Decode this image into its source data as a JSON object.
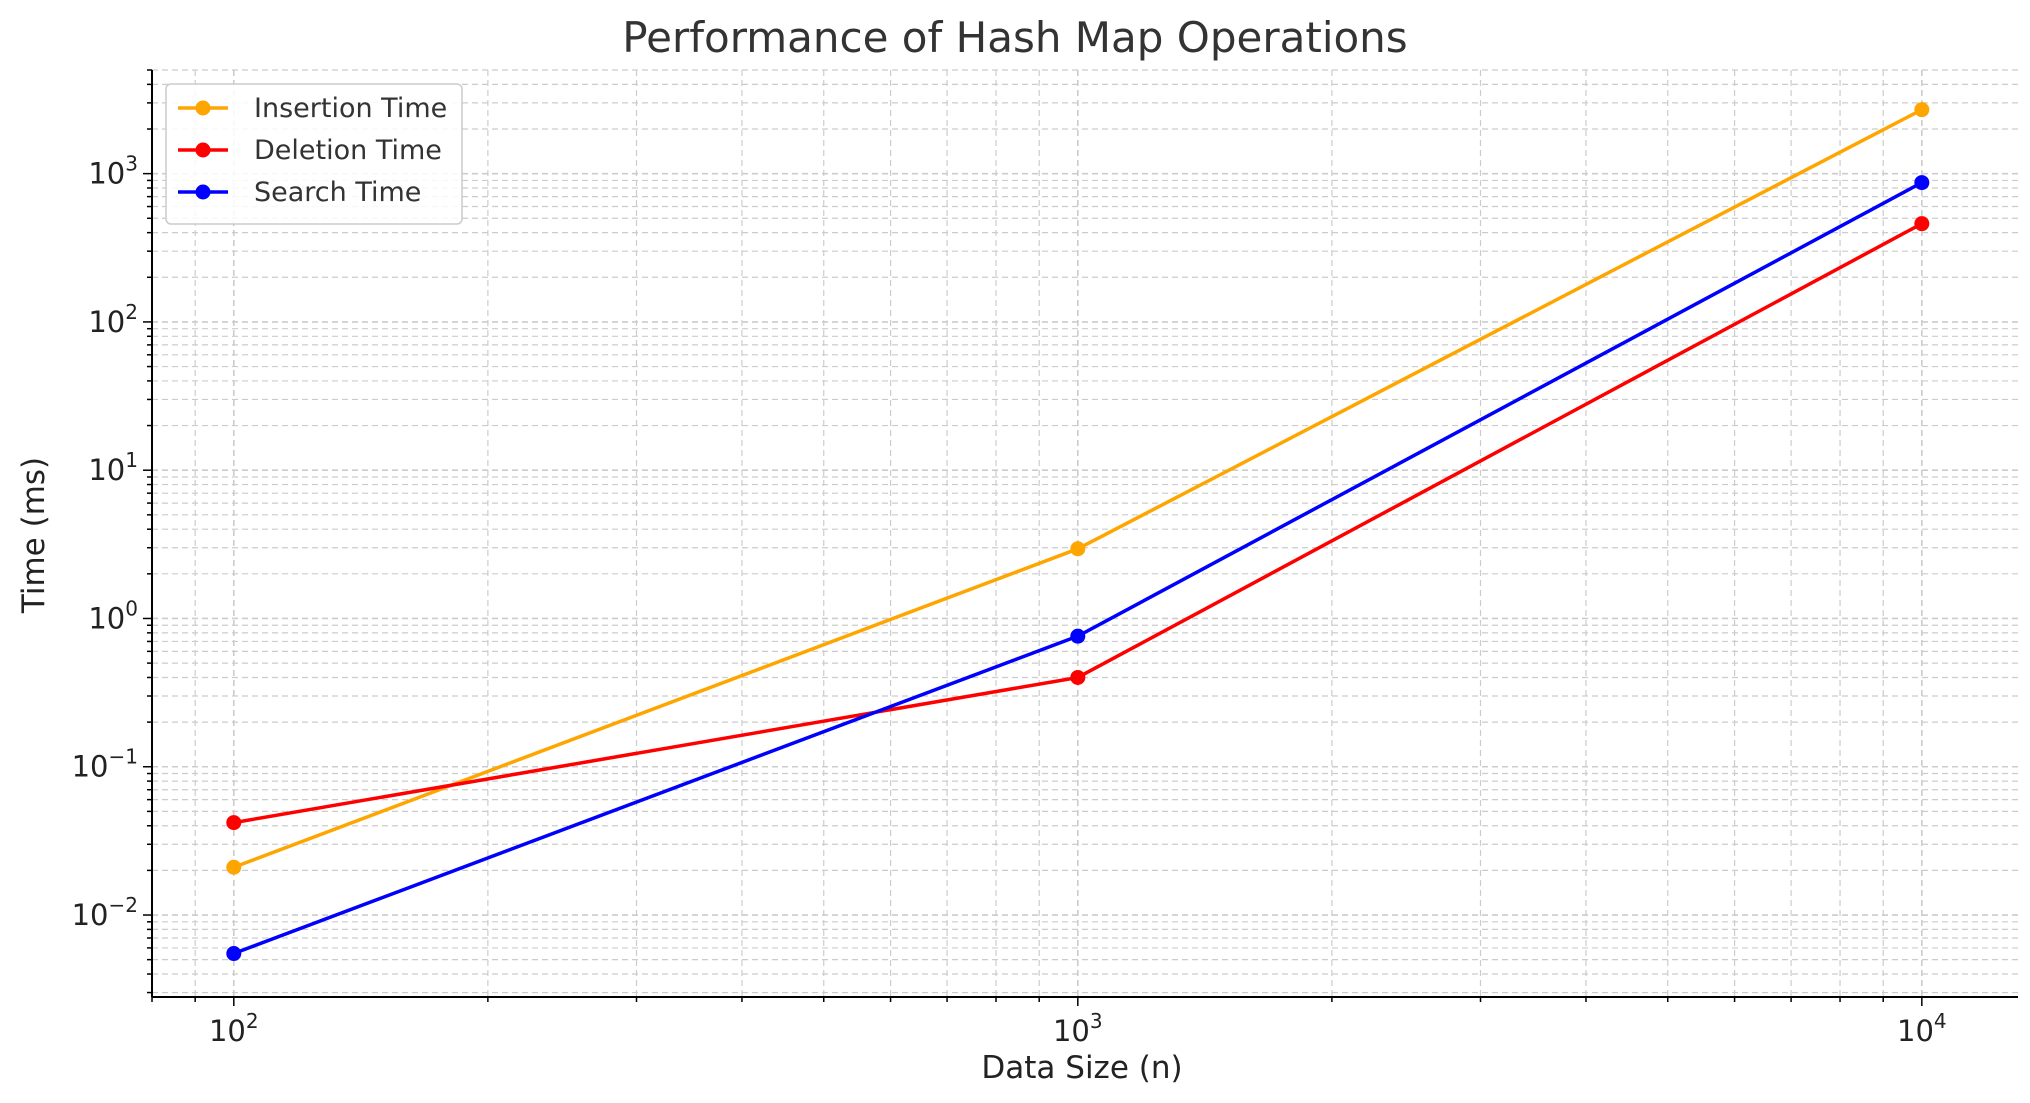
{
  "chart_data": {
    "type": "line",
    "title": "Performance of Hash Map Operations",
    "xlabel": "Data Size (n)",
    "ylabel": "Time (ms)",
    "x_scale": "log",
    "y_scale": "log",
    "x": [
      100,
      1000,
      10000
    ],
    "xlim": [
      80,
      13000
    ],
    "ylim": [
      0.0028,
      5000
    ],
    "x_ticks": [
      {
        "value": 100,
        "base": "10",
        "exp": "2"
      },
      {
        "value": 1000,
        "base": "10",
        "exp": "3"
      },
      {
        "value": 10000,
        "base": "10",
        "exp": "4"
      }
    ],
    "y_ticks": [
      {
        "value": 0.01,
        "base": "10",
        "exp": "−2"
      },
      {
        "value": 0.1,
        "base": "10",
        "exp": "−1"
      },
      {
        "value": 1,
        "base": "10",
        "exp": "0"
      },
      {
        "value": 10,
        "base": "10",
        "exp": "1"
      },
      {
        "value": 100,
        "base": "10",
        "exp": "2"
      },
      {
        "value": 1000,
        "base": "10",
        "exp": "3"
      }
    ],
    "grid": true,
    "legend_position": "top-left",
    "series": [
      {
        "name": "Insertion Time",
        "color": "#FFA500",
        "values": [
          0.021,
          2.95,
          2700
        ]
      },
      {
        "name": "Deletion Time",
        "color": "#FF0000",
        "values": [
          0.042,
          0.4,
          460
        ]
      },
      {
        "name": "Search Time",
        "color": "#0000FF",
        "values": [
          0.0055,
          0.76,
          870
        ]
      }
    ]
  }
}
